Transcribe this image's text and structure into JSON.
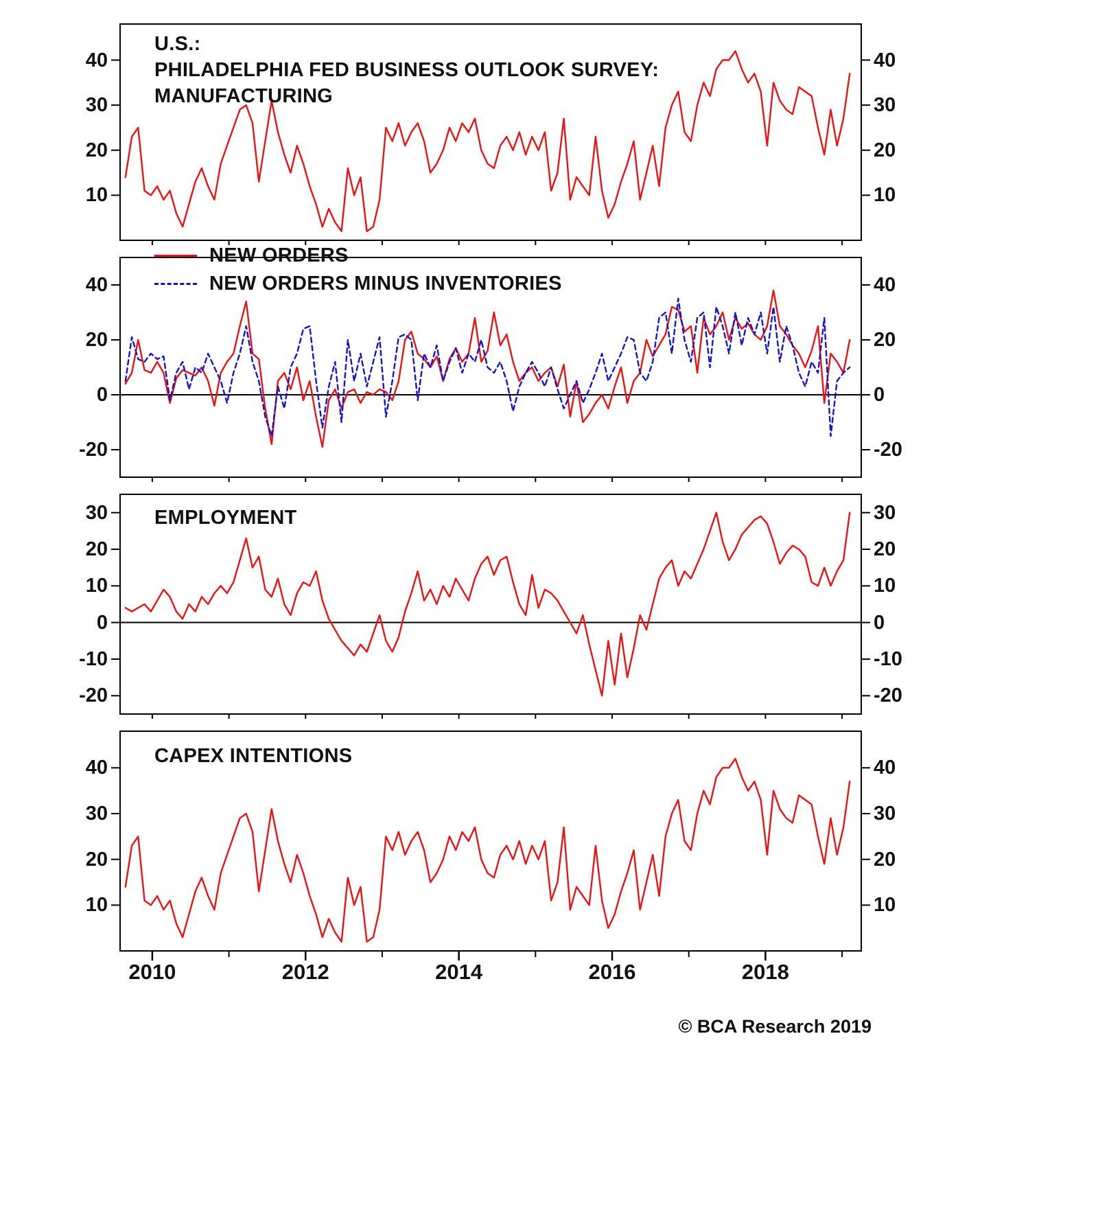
{
  "footer": {
    "text": "© BCA Research 2019"
  },
  "colors": {
    "red": "#ee1111",
    "blue": "#1414cc",
    "axis": "#000000",
    "text": "#111111"
  },
  "x_axis": {
    "range": [
      2009.58,
      2019.25
    ],
    "data_range": [
      2009.65,
      2019.1
    ],
    "interval": "monthly",
    "major_ticks": [
      "2010",
      "2012",
      "2014",
      "2016",
      "2018"
    ],
    "major_tick_years": [
      2010,
      2012,
      2014,
      2016,
      2018
    ],
    "minor_tick_years": [
      2011,
      2013,
      2015,
      2017,
      2019
    ]
  },
  "chart_data": [
    {
      "type": "line",
      "title_lines": [
        "U.S.:",
        "PHILADELPHIA FED BUSINESS OUTLOOK SURVEY:",
        "MANUFACTURING"
      ],
      "ylim": [
        0,
        48
      ],
      "yticks": [
        40,
        30,
        20,
        10
      ],
      "zero_line": false,
      "series": [
        {
          "name": "MANUFACTURING",
          "color": "red",
          "style": "solid",
          "values": [
            14,
            23,
            25,
            11,
            10,
            12,
            9,
            11,
            6,
            3,
            8,
            13,
            16,
            12,
            9,
            17,
            21,
            25,
            29,
            30,
            26,
            13,
            22,
            31,
            24,
            19,
            15,
            21,
            17,
            12,
            8,
            3,
            7,
            4,
            2,
            16,
            10,
            14,
            2,
            3,
            9,
            25,
            22,
            26,
            21,
            24,
            26,
            22,
            15,
            17,
            20,
            25,
            22,
            26,
            24,
            27,
            20,
            17,
            16,
            21,
            23,
            20,
            24,
            19,
            23,
            20,
            24,
            11,
            15,
            27,
            9,
            14,
            12,
            10,
            23,
            11,
            5,
            8,
            13,
            17,
            22,
            9,
            15,
            21,
            12,
            25,
            30,
            33,
            24,
            22,
            30,
            35,
            32,
            38,
            40,
            40,
            42,
            38,
            35,
            37,
            33,
            21,
            35,
            31,
            29,
            28,
            34,
            33,
            32,
            25,
            19,
            29,
            21,
            27,
            37
          ]
        }
      ]
    },
    {
      "type": "line",
      "title": "",
      "ylim": [
        -30,
        50
      ],
      "yticks": [
        40,
        20,
        0,
        -20
      ],
      "zero_line": true,
      "series": [
        {
          "name": "NEW ORDERS",
          "color": "red",
          "style": "solid",
          "values": [
            4,
            8,
            20,
            9,
            8,
            12,
            8,
            -3,
            6,
            9,
            8,
            7,
            10,
            5,
            -4,
            8,
            12,
            15,
            25,
            34,
            15,
            13,
            -5,
            -18,
            5,
            8,
            2,
            10,
            -2,
            5,
            -8,
            -19,
            -2,
            2,
            -5,
            1,
            2,
            -3,
            1,
            0,
            2,
            1,
            -2,
            5,
            20,
            23,
            15,
            13,
            10,
            14,
            5,
            13,
            17,
            12,
            15,
            28,
            12,
            16,
            30,
            18,
            22,
            12,
            5,
            8,
            10,
            5,
            8,
            10,
            3,
            11,
            -8,
            5,
            -10,
            -7,
            -3,
            0,
            -5,
            3,
            10,
            -3,
            5,
            8,
            20,
            14,
            18,
            22,
            32,
            31,
            23,
            25,
            8,
            28,
            22,
            25,
            30,
            20,
            28,
            24,
            26,
            22,
            20,
            25,
            38,
            25,
            22,
            18,
            15,
            10,
            16,
            25,
            -3,
            15,
            12,
            8,
            20
          ]
        },
        {
          "name": "NEW ORDERS MINUS INVENTORIES",
          "color": "blue",
          "style": "dashed",
          "values": [
            5,
            21,
            13,
            12,
            15,
            13,
            14,
            -2,
            8,
            12,
            2,
            10,
            8,
            15,
            10,
            5,
            -3,
            8,
            15,
            25,
            12,
            5,
            -8,
            -15,
            3,
            -5,
            10,
            15,
            24,
            25,
            5,
            -12,
            3,
            12,
            -10,
            20,
            5,
            15,
            3,
            12,
            21,
            -8,
            5,
            21,
            22,
            20,
            -2,
            15,
            10,
            18,
            5,
            12,
            17,
            8,
            15,
            12,
            20,
            10,
            8,
            12,
            5,
            -6,
            3,
            8,
            12,
            8,
            3,
            10,
            2,
            -5,
            0,
            5,
            -3,
            2,
            8,
            15,
            5,
            10,
            15,
            21,
            20,
            8,
            5,
            12,
            28,
            30,
            15,
            35,
            20,
            12,
            28,
            30,
            10,
            32,
            25,
            15,
            30,
            18,
            28,
            22,
            30,
            15,
            32,
            12,
            25,
            18,
            8,
            3,
            12,
            8,
            28,
            -15,
            5,
            8,
            10
          ]
        }
      ]
    },
    {
      "type": "line",
      "title": "EMPLOYMENT",
      "ylim": [
        -25,
        35
      ],
      "yticks": [
        30,
        20,
        10,
        0,
        -10,
        -20
      ],
      "zero_line": true,
      "series": [
        {
          "name": "EMPLOYMENT",
          "color": "red",
          "style": "solid",
          "values": [
            4,
            3,
            4,
            5,
            3,
            6,
            9,
            7,
            3,
            1,
            5,
            3,
            7,
            5,
            8,
            10,
            8,
            11,
            17,
            23,
            15,
            18,
            9,
            7,
            12,
            5,
            2,
            8,
            11,
            10,
            14,
            6,
            1,
            -2,
            -5,
            -7,
            -9,
            -6,
            -8,
            -3,
            2,
            -5,
            -8,
            -4,
            3,
            8,
            14,
            6,
            9,
            5,
            10,
            7,
            12,
            9,
            6,
            12,
            16,
            18,
            13,
            17,
            18,
            11,
            5,
            2,
            13,
            4,
            9,
            8,
            6,
            3,
            0,
            -3,
            2,
            -6,
            -13,
            -20,
            -5,
            -17,
            -3,
            -15,
            -7,
            2,
            -2,
            5,
            12,
            15,
            17,
            10,
            14,
            12,
            16,
            20,
            25,
            30,
            22,
            17,
            20,
            24,
            26,
            28,
            29,
            27,
            22,
            16,
            19,
            21,
            20,
            18,
            11,
            10,
            15,
            10,
            14,
            17,
            30
          ]
        }
      ]
    },
    {
      "type": "line",
      "title": "CAPEX INTENTIONS",
      "ylim": [
        0,
        48
      ],
      "yticks": [
        40,
        30,
        20,
        10
      ],
      "zero_line": false,
      "series": [
        {
          "name": "CAPEX INTENTIONS",
          "color": "red",
          "style": "solid",
          "values": [
            14,
            23,
            25,
            11,
            10,
            12,
            9,
            11,
            6,
            3,
            8,
            13,
            16,
            12,
            9,
            17,
            21,
            25,
            29,
            30,
            26,
            13,
            22,
            31,
            24,
            19,
            15,
            21,
            17,
            12,
            8,
            3,
            7,
            4,
            2,
            16,
            10,
            14,
            2,
            3,
            9,
            25,
            22,
            26,
            21,
            24,
            26,
            22,
            15,
            17,
            20,
            25,
            22,
            26,
            24,
            27,
            20,
            17,
            16,
            21,
            23,
            20,
            24,
            19,
            23,
            20,
            24,
            11,
            15,
            27,
            9,
            14,
            12,
            10,
            23,
            11,
            5,
            8,
            13,
            17,
            22,
            9,
            15,
            21,
            12,
            25,
            30,
            33,
            24,
            22,
            30,
            35,
            32,
            38,
            40,
            40,
            42,
            38,
            35,
            37,
            33,
            21,
            35,
            31,
            29,
            28,
            34,
            33,
            32,
            25,
            19,
            29,
            21,
            27,
            37
          ]
        }
      ]
    }
  ]
}
